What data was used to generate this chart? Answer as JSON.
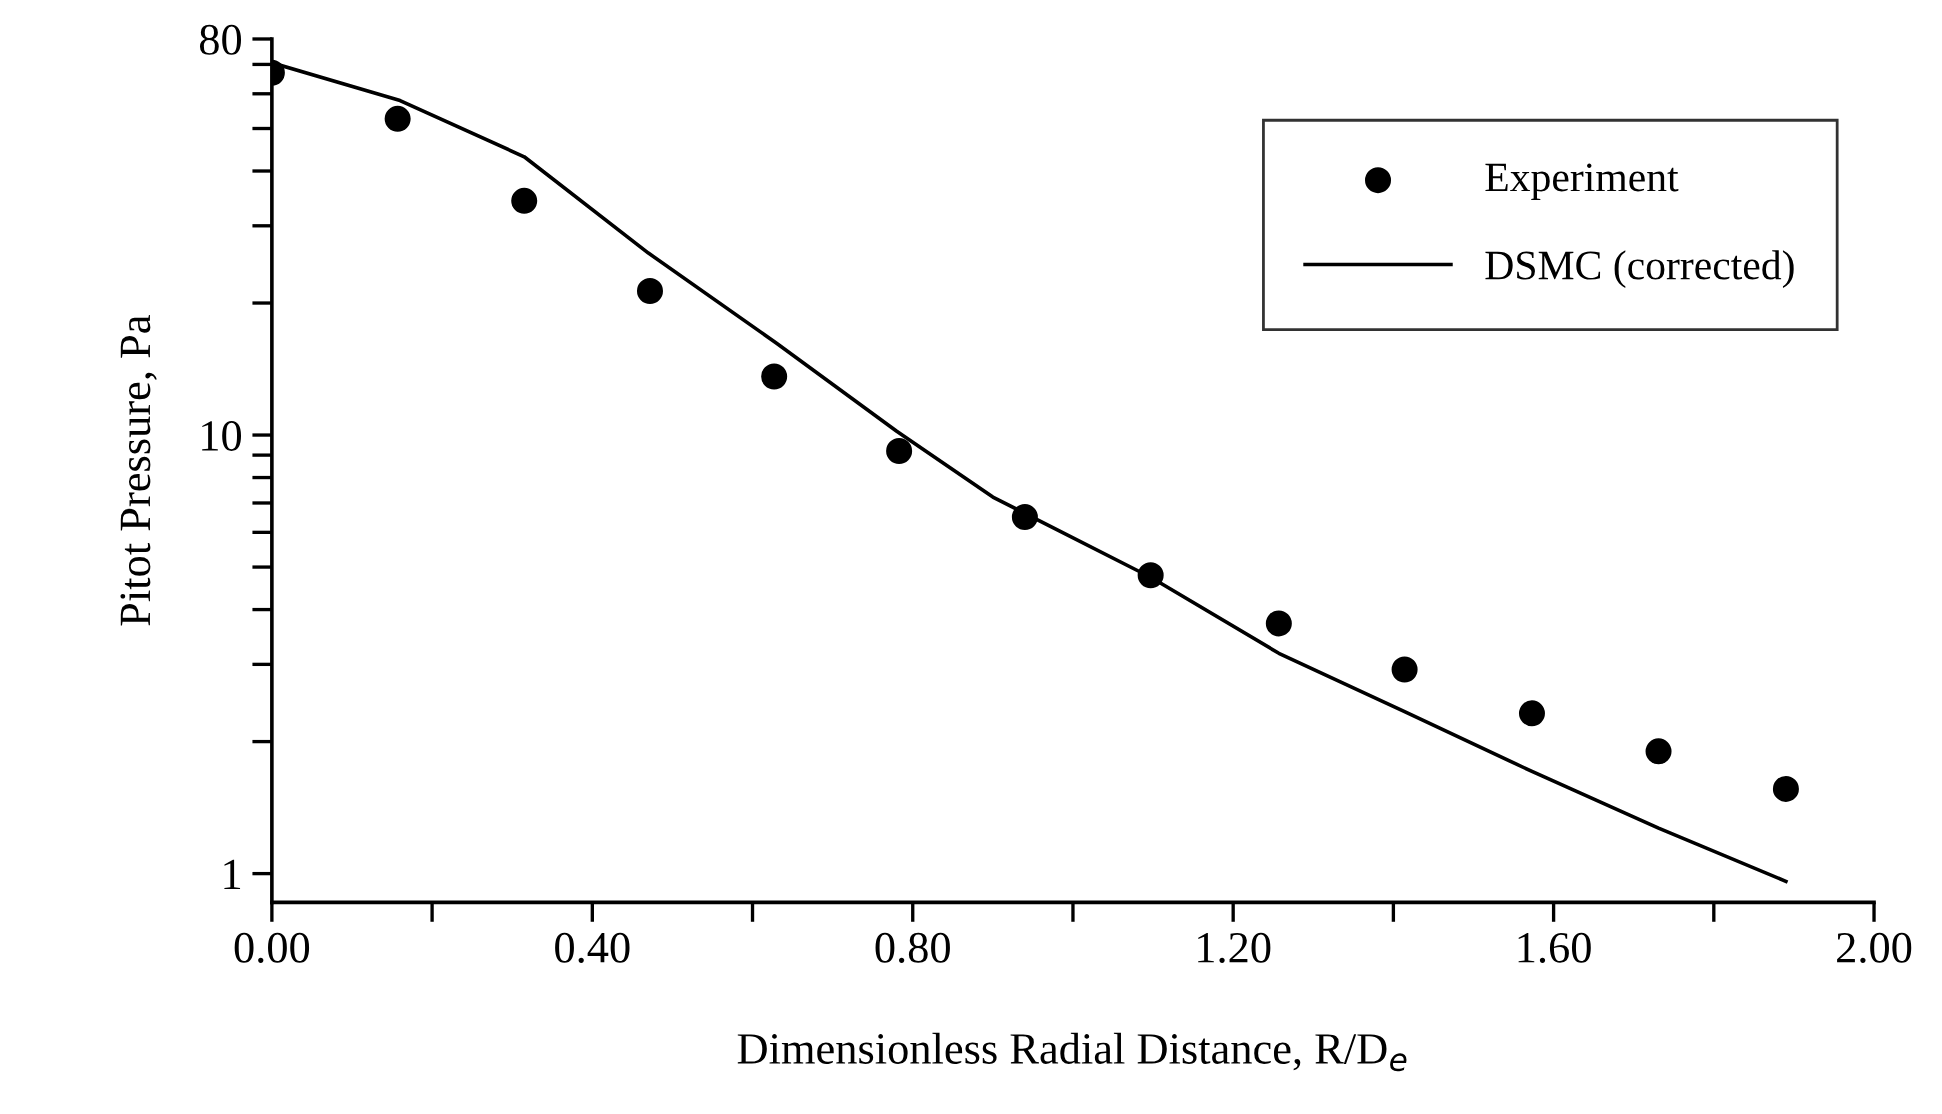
{
  "chart_data": {
    "type": "scatter",
    "xlabel": "Dimensionless Radial Distance, R/D$_{e}$",
    "ylabel": "Pitot Pressure, Pa",
    "log": "y",
    "xlim": [
      0,
      2
    ],
    "ylim": [
      0.86,
      80
    ],
    "xticks": [
      {
        "value": 0,
        "label": "0.00"
      },
      {
        "value": 0.2,
        "label": null
      },
      {
        "value": 0.4,
        "label": "0.40"
      },
      {
        "value": 0.6,
        "label": null
      },
      {
        "value": 0.8,
        "label": "0.80"
      },
      {
        "value": 1.0,
        "label": null
      },
      {
        "value": 1.2,
        "label": "1.20"
      },
      {
        "value": 1.4,
        "label": null
      },
      {
        "value": 1.6,
        "label": "1.60"
      },
      {
        "value": 1.8,
        "label": null
      },
      {
        "value": 2.0,
        "label": "2.00"
      }
    ],
    "yticks": [
      1,
      {
        "value": 2,
        "label": null
      },
      {
        "value": 3,
        "label": null
      },
      {
        "value": 4,
        "label": null
      },
      {
        "value": 5,
        "label": null
      },
      {
        "value": 6,
        "label": null
      },
      {
        "value": 7,
        "label": null
      },
      {
        "value": 8,
        "label": null
      },
      {
        "value": 9,
        "label": null
      },
      10,
      {
        "value": 20,
        "label": null
      },
      {
        "value": 30,
        "label": null
      },
      {
        "value": 40,
        "label": null
      },
      {
        "value": 50,
        "label": null
      },
      {
        "value": 60,
        "label": null
      },
      {
        "value": 70,
        "label": null
      },
      80
    ],
    "grid": false,
    "legend": "top right",
    "series": [
      {
        "name": "Experiment",
        "marker": "circle",
        "color": "#000000",
        "x": [
          0,
          0.157,
          0.315,
          0.472,
          0.627,
          0.783,
          0.94,
          1.097,
          1.257,
          1.414,
          1.573,
          1.731,
          1.89
        ],
        "values": [
          67,
          52.6,
          34.2,
          21.3,
          13.6,
          9.2,
          6.5,
          4.79,
          3.72,
          2.92,
          2.32,
          1.9,
          1.56
        ]
      },
      {
        "name": "DSMC (corrected)",
        "type": "line",
        "line_style": "solid",
        "color": "#000000",
        "x": [
          0,
          0.16,
          0.315,
          0.47,
          0.63,
          0.78,
          0.9,
          1.097,
          1.257,
          1.414,
          1.573,
          1.731,
          1.89
        ],
        "values": [
          70.6,
          57.9,
          43.1,
          26.0,
          16.2,
          10.2,
          7.22,
          4.74,
          3.18,
          2.34,
          1.71,
          1.27,
          0.96
        ]
      }
    ]
  }
}
